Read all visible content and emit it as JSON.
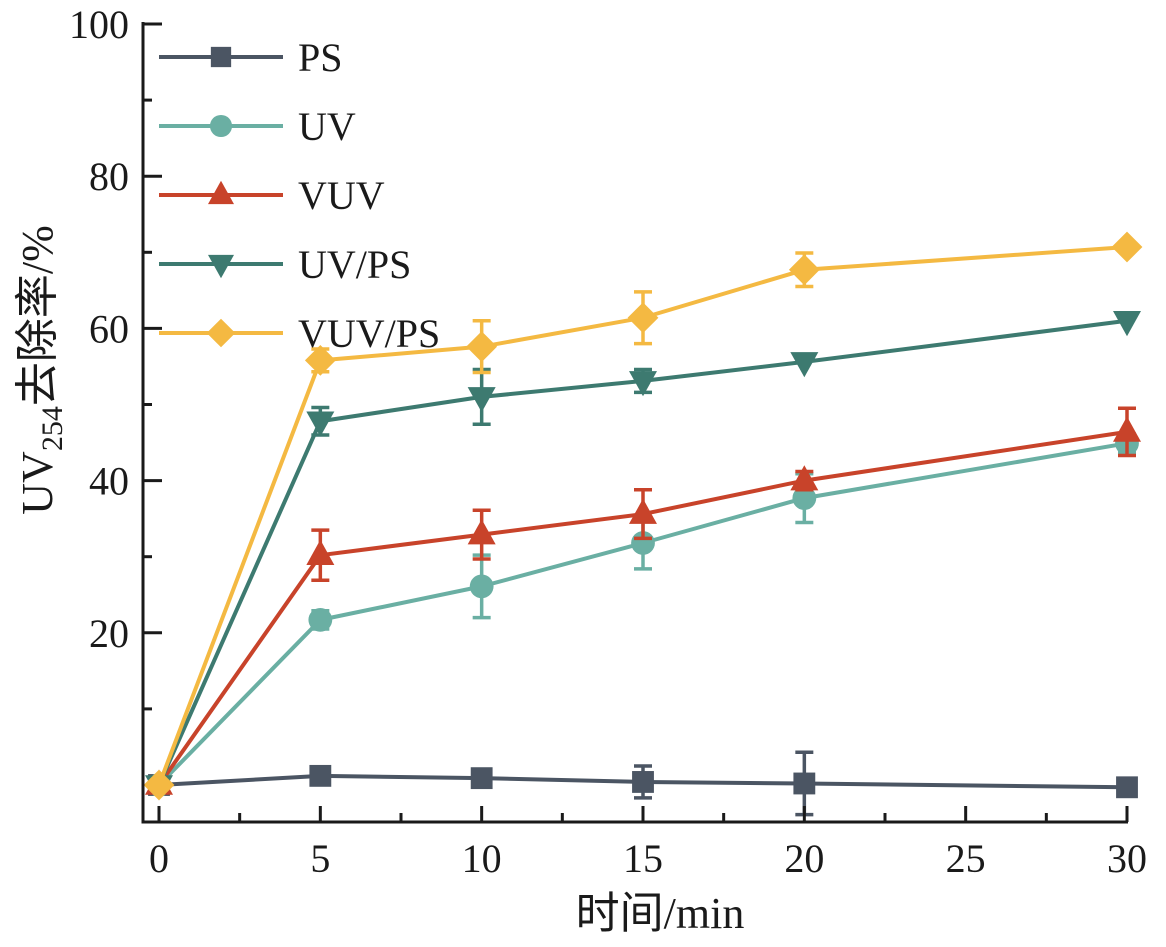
{
  "chart_data": {
    "type": "line",
    "title": "",
    "xlabel": "时间/min",
    "ylabel": {
      "main": "UV",
      "subscript": "254",
      "suffix": "去除率/%"
    },
    "xlim": [
      0,
      30
    ],
    "ylim": [
      0,
      100
    ],
    "x_ticks": [
      0,
      5,
      10,
      15,
      20,
      25,
      30
    ],
    "x_tick_labels": [
      "0",
      "5",
      "10",
      "15",
      "20",
      "25",
      "30"
    ],
    "x_minor_step": 2.5,
    "y_ticks": [
      20,
      40,
      60,
      80,
      100
    ],
    "y_tick_labels": [
      "20",
      "40",
      "60",
      "80",
      "100"
    ],
    "y_minor_step": 10,
    "grid": false,
    "legend": {
      "position": "top-left"
    },
    "x": [
      0,
      5,
      10,
      15,
      20,
      30
    ],
    "series": [
      {
        "name": "PS",
        "marker": "square",
        "color": "#4b5563",
        "values": [
          0,
          1.2,
          0.9,
          0.4,
          0.2,
          -0.3
        ],
        "errors": [
          0,
          0.9,
          0.8,
          2.1,
          4.1,
          0
        ]
      },
      {
        "name": "UV",
        "marker": "circle",
        "color": "#6aafa3",
        "values": [
          0,
          21.7,
          26.1,
          31.8,
          37.7,
          44.9
        ],
        "errors": [
          0,
          1.2,
          4.1,
          3.4,
          3.2,
          1.2
        ]
      },
      {
        "name": "VUV",
        "marker": "triangle-up",
        "color": "#c8432a",
        "values": [
          0,
          30.2,
          32.9,
          35.6,
          40.0,
          46.4
        ],
        "errors": [
          0,
          3.3,
          3.2,
          3.2,
          1.2,
          3.1
        ]
      },
      {
        "name": "UV/PS",
        "marker": "triangle-down",
        "color": "#3d7a70",
        "values": [
          0,
          47.8,
          51.0,
          53.1,
          55.6,
          61.0
        ],
        "errors": [
          0,
          1.8,
          3.6,
          1.5,
          0,
          0
        ]
      },
      {
        "name": "VUV/PS",
        "marker": "diamond",
        "color": "#f4b942",
        "values": [
          0,
          55.8,
          57.6,
          61.4,
          67.7,
          70.7
        ],
        "errors": [
          0,
          1.5,
          3.4,
          3.4,
          2.2,
          0.5
        ]
      }
    ]
  }
}
